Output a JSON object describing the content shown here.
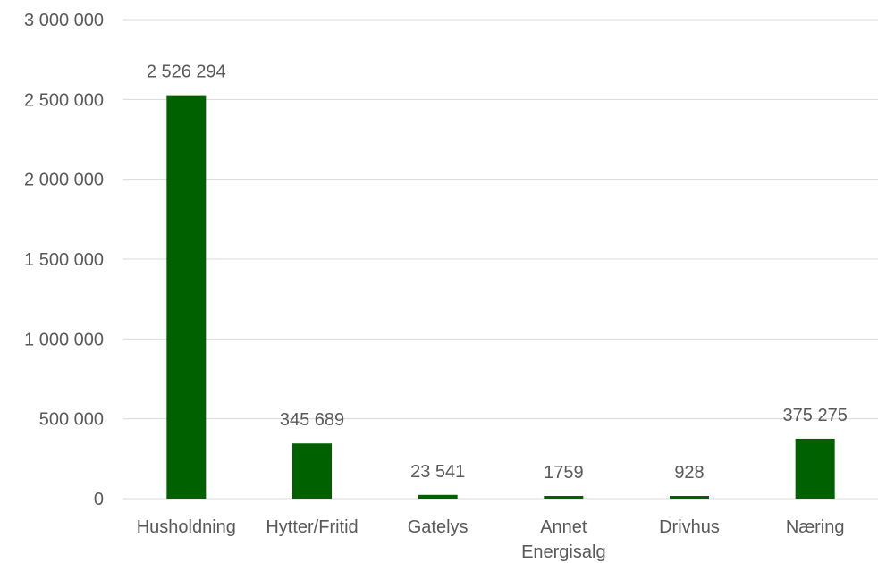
{
  "chart_data": {
    "type": "bar",
    "title": "",
    "xlabel": "",
    "ylabel": "",
    "categories": [
      [
        "Husholdning"
      ],
      [
        "Hytter/Fritid"
      ],
      [
        "Gatelys"
      ],
      [
        "Annet",
        "Energisalg"
      ],
      [
        "Drivhus"
      ],
      [
        "Næring"
      ]
    ],
    "values": [
      2526294,
      345689,
      23541,
      1759,
      928,
      375275
    ],
    "data_labels": [
      "2 526 294",
      "345 689",
      "23 541",
      "1759",
      "928",
      "375 275"
    ],
    "ylim": [
      0,
      3000000
    ],
    "y_ticks": [
      0,
      500000,
      1000000,
      1500000,
      2000000,
      2500000,
      3000000
    ],
    "y_tick_labels": [
      "0",
      "500 000",
      "1 000 000",
      "1 500 000",
      "2 000 000",
      "2 500 000",
      "3 000 000"
    ],
    "grid": true,
    "legend": "none",
    "bar_color": "#006100",
    "grid_color": "#d9d9d9",
    "text_color": "#595959"
  }
}
